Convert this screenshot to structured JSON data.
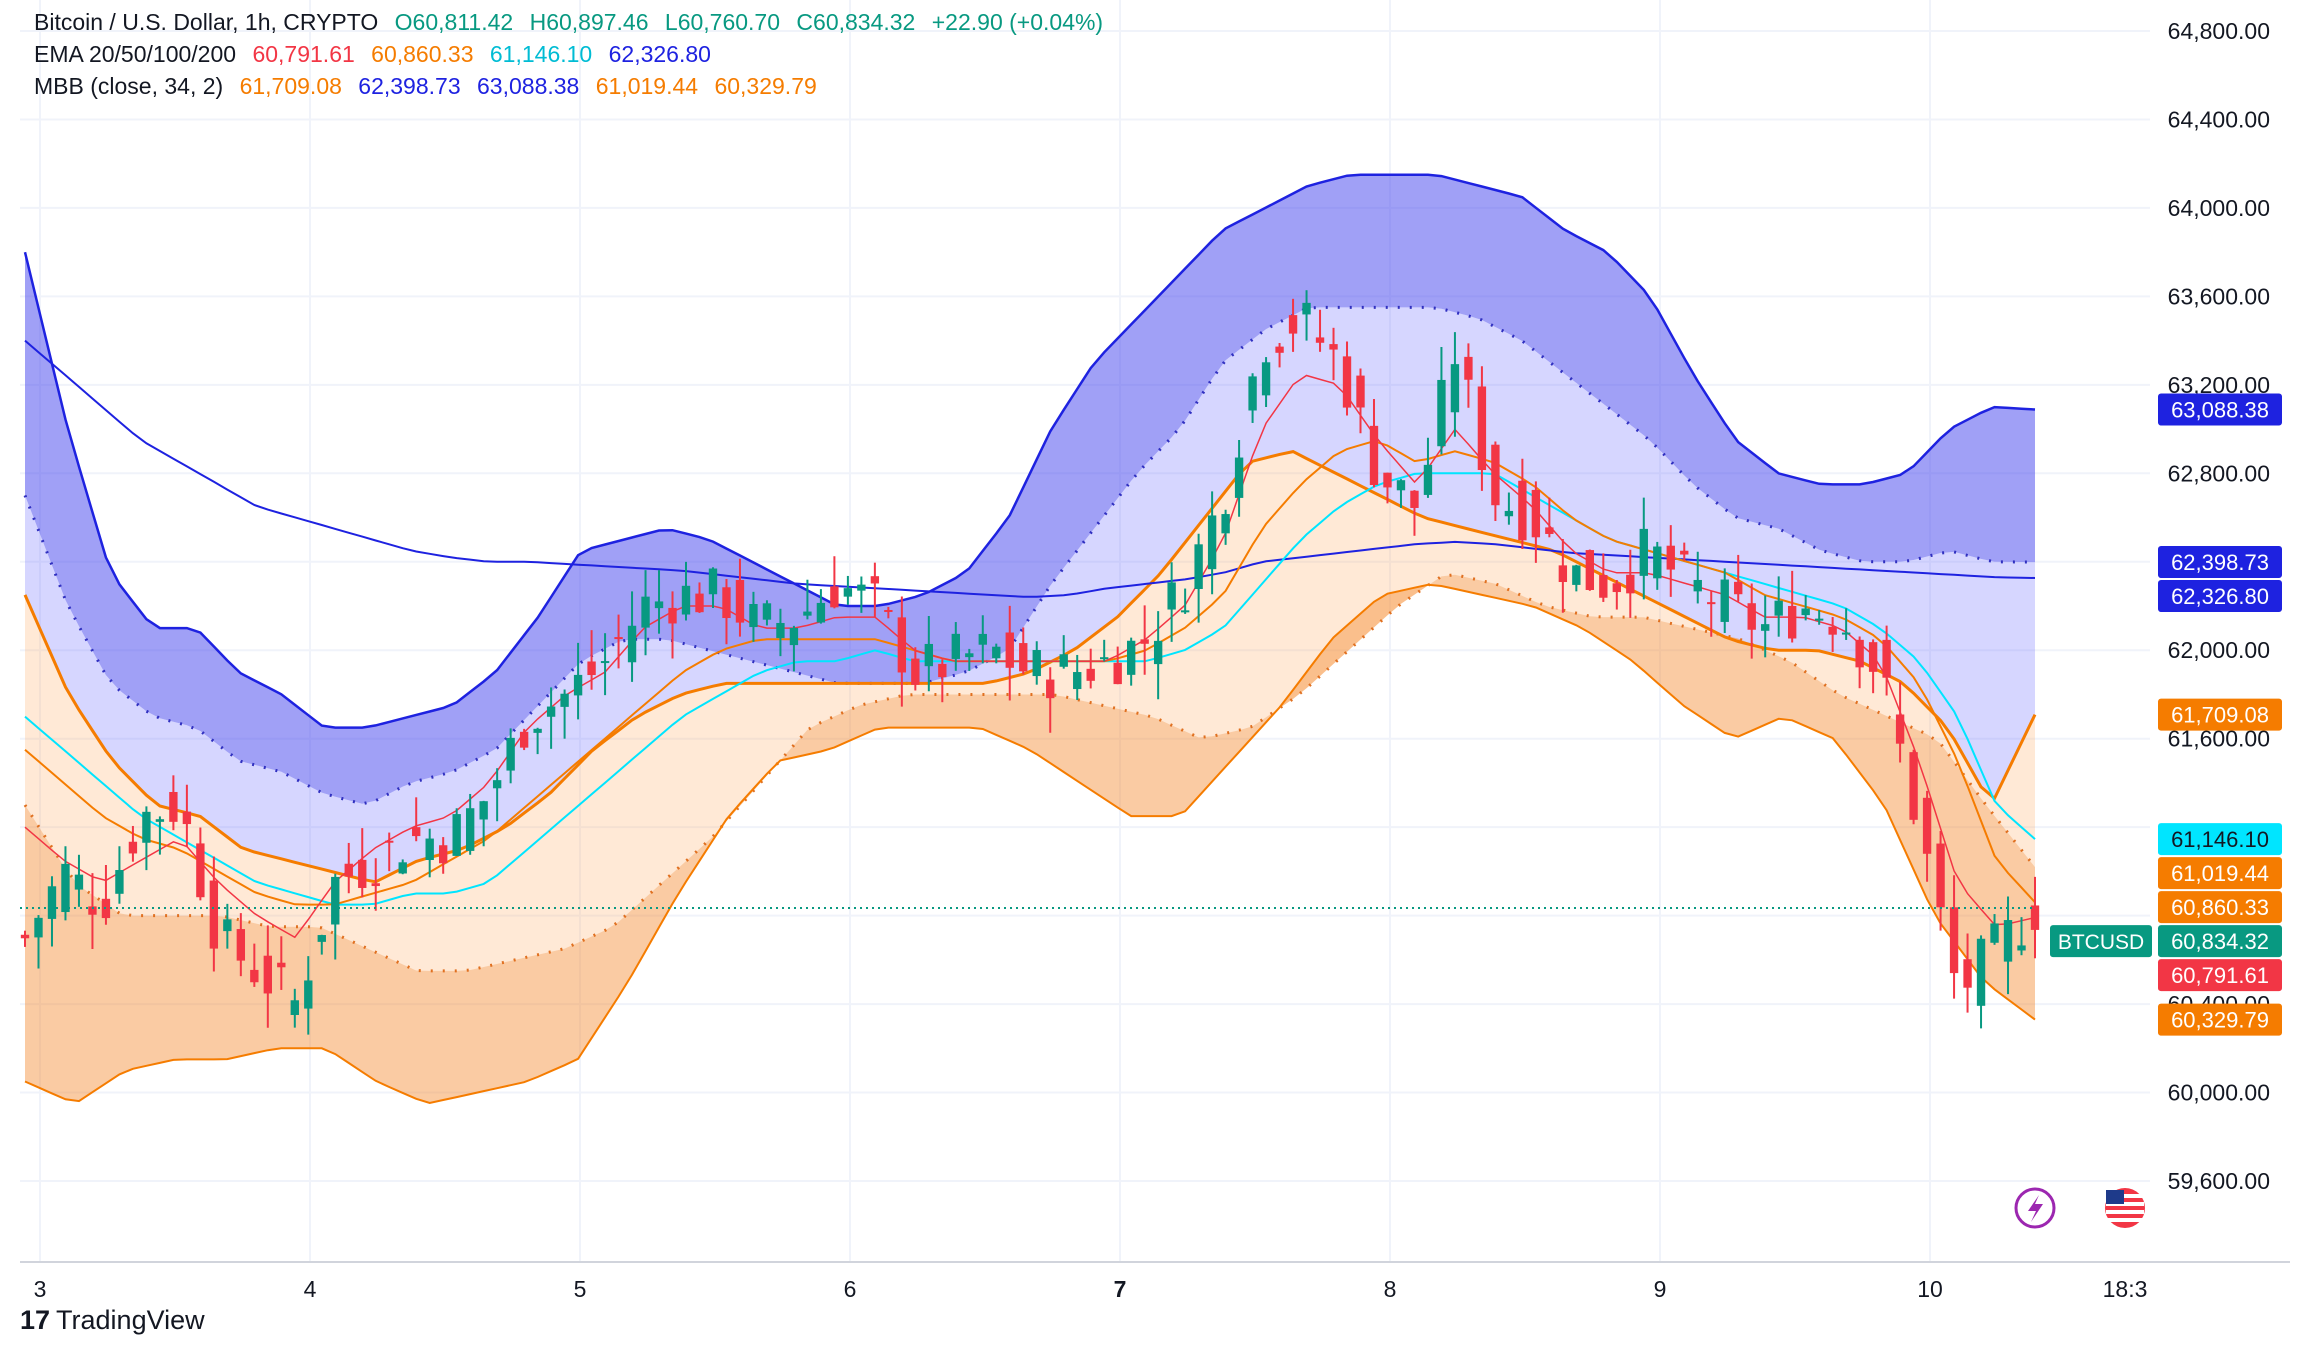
{
  "legend": {
    "symbol_line": {
      "title": "Bitcoin / U.S. Dollar, 1h, CRYPTO",
      "open": "O60,811.42",
      "high": "H60,897.46",
      "low": "L60,760.70",
      "close": "C60,834.32",
      "change": "+22.90 (+0.04%)"
    },
    "ema_line": {
      "label": "EMA 20/50/100/200",
      "v20": "60,791.61",
      "v50": "60,860.33",
      "v100": "61,146.10",
      "v200": "62,326.80"
    },
    "mbb_line": {
      "label": "MBB (close, 34, 2)",
      "v1": "61,709.08",
      "v2": "62,398.73",
      "v3": "63,088.38",
      "v4": "61,019.44",
      "v5": "60,329.79"
    }
  },
  "price_axis": {
    "ticks": [
      "64,800.00",
      "64,400.00",
      "64,000.00",
      "63,600.00",
      "63,200.00",
      "62,800.00",
      "62,400.00",
      "62,000.00",
      "61,600.00",
      "60,400.00",
      "60,000.00",
      "59,600.00"
    ],
    "badges": [
      {
        "text": "63,088.38",
        "value": 63088.38,
        "color": "#1e22e0"
      },
      {
        "text": "62,398.73",
        "value": 62398.73,
        "color": "#1e22e0"
      },
      {
        "text": "62,326.80",
        "value": 62326.8,
        "color": "#1e22e0"
      },
      {
        "text": "61,709.08",
        "value": 61709.08,
        "color": "#f57c00"
      },
      {
        "text": "61,146.10",
        "value": 61146.1,
        "color": "#00e5ff",
        "text_color": "#131722"
      },
      {
        "text": "61,019.44",
        "value": 61019.44,
        "color": "#f57c00"
      },
      {
        "text": "60,860.33",
        "value": 60860.33,
        "color": "#f57c00"
      },
      {
        "text": "60,834.32",
        "value": 60834.32,
        "color": "#089981"
      },
      {
        "text": "60,791.61",
        "value": 60791.61,
        "color": "#f23645"
      },
      {
        "text": "60,329.79",
        "value": 60329.79,
        "color": "#f57c00"
      }
    ],
    "symbol_tag": "BTCUSD"
  },
  "time_axis": {
    "labels": [
      {
        "text": "3",
        "bold": false
      },
      {
        "text": "4",
        "bold": false
      },
      {
        "text": "5",
        "bold": false
      },
      {
        "text": "6",
        "bold": false
      },
      {
        "text": "7",
        "bold": true
      },
      {
        "text": "8",
        "bold": false
      },
      {
        "text": "9",
        "bold": false
      },
      {
        "text": "10",
        "bold": false
      },
      {
        "text": "18:3",
        "bold": false
      }
    ]
  },
  "branding": {
    "name": "TradingView",
    "mark": "17"
  },
  "icons": [
    "lightning-icon",
    "us-flag-icon"
  ],
  "colors": {
    "up": "#089981",
    "down": "#f23645",
    "ema20": "#f23645",
    "ema50": "#f57c00",
    "ema100": "#00e5ff",
    "ema200": "#1e22e0",
    "upper_band": "#1e22e0",
    "lower_band": "#f57c00"
  },
  "chart_data": {
    "type": "candlestick",
    "title": "Bitcoin / U.S. Dollar, 1h, CRYPTO",
    "ylim": [
      59450,
      65000
    ],
    "x_labels": [
      "3",
      "4",
      "5",
      "6",
      "7",
      "8",
      "9",
      "10"
    ],
    "anchors": {
      "close": [
        60700,
        61000,
        60850,
        61250,
        61300,
        60700,
        60550,
        60400,
        60950,
        61050,
        61150,
        61150,
        61350,
        61700,
        61800,
        61950,
        62200,
        62250,
        62250,
        62100,
        62150,
        62300,
        62200,
        61900,
        61950,
        62000,
        61900,
        61900,
        61950,
        62050,
        62300,
        62700,
        63400,
        63500,
        63300,
        62800,
        62650,
        63350,
        62700,
        62600,
        62350,
        62300,
        62450,
        62300,
        62200,
        62100,
        62200,
        62150,
        61900,
        61200,
        60450,
        60650,
        60834.32
      ],
      "ema20": [
        61200,
        61050,
        60950,
        61050,
        61150,
        60950,
        60800,
        60700,
        60950,
        61100,
        61200,
        61250,
        61400,
        61650,
        61800,
        61900,
        62100,
        62200,
        62200,
        62100,
        62100,
        62150,
        62150,
        62000,
        61950,
        61950,
        61950,
        61950,
        61950,
        62050,
        62200,
        62500,
        63000,
        63250,
        63200,
        62950,
        62750,
        63000,
        62800,
        62650,
        62450,
        62350,
        62350,
        62300,
        62250,
        62150,
        62150,
        62100,
        61950,
        61500,
        60950,
        60750,
        60791.61
      ],
      "ema50": [
        61550,
        61400,
        61250,
        61150,
        61100,
        61000,
        60900,
        60850,
        60850,
        60900,
        60950,
        61050,
        61150,
        61300,
        61450,
        61600,
        61750,
        61900,
        62000,
        62050,
        62050,
        62050,
        62050,
        62000,
        61950,
        61950,
        61950,
        61950,
        61950,
        62000,
        62100,
        62250,
        62550,
        62750,
        62900,
        62950,
        62850,
        62900,
        62850,
        62750,
        62600,
        62500,
        62450,
        62400,
        62350,
        62250,
        62200,
        62150,
        62050,
        61850,
        61500,
        61050,
        60860.33
      ],
      "ema100": [
        61700,
        61550,
        61400,
        61250,
        61150,
        61050,
        60950,
        60900,
        60850,
        60850,
        60900,
        60900,
        60950,
        61100,
        61250,
        61400,
        61550,
        61700,
        61800,
        61900,
        61950,
        61950,
        62000,
        61950,
        61950,
        61950,
        61950,
        61950,
        61950,
        61950,
        62000,
        62100,
        62300,
        62500,
        62650,
        62750,
        62800,
        62800,
        62800,
        62700,
        62600,
        62500,
        62450,
        62400,
        62350,
        62300,
        62250,
        62200,
        62100,
        61950,
        61700,
        61300,
        61146.1
      ],
      "ema200": [
        63400,
        63250,
        63100,
        62950,
        62850,
        62750,
        62650,
        62600,
        62550,
        62500,
        62450,
        62420,
        62400,
        62400,
        62390,
        62380,
        62370,
        62360,
        62340,
        62320,
        62300,
        62290,
        62280,
        62270,
        62260,
        62250,
        62240,
        62250,
        62280,
        62300,
        62320,
        62350,
        62400,
        62420,
        62440,
        62460,
        62480,
        62490,
        62480,
        62460,
        62440,
        62430,
        62420,
        62410,
        62400,
        62390,
        62380,
        62370,
        62360,
        62350,
        62340,
        62330,
        62326.8
      ],
      "upper_band": [
        63800,
        63000,
        62350,
        62100,
        62100,
        61900,
        61800,
        61650,
        61650,
        61700,
        61750,
        61900,
        62150,
        62450,
        62500,
        62550,
        62500,
        62400,
        62300,
        62200,
        62200,
        62250,
        62350,
        62600,
        63000,
        63300,
        63500,
        63700,
        63900,
        64000,
        64100,
        64150,
        64150,
        64150,
        64100,
        64050,
        63900,
        63800,
        63600,
        63250,
        62950,
        62800,
        62750,
        62750,
        62800,
        63000,
        63100,
        63088.38
      ],
      "basis": [
        62700,
        62200,
        61850,
        61700,
        61650,
        61500,
        61450,
        61350,
        61300,
        61400,
        61450,
        61550,
        61750,
        61950,
        62050,
        62050,
        62000,
        61950,
        61900,
        61850,
        61850,
        61850,
        61900,
        62000,
        62300,
        62550,
        62800,
        63000,
        63300,
        63450,
        63550,
        63550,
        63550,
        63550,
        63500,
        63400,
        63250,
        63100,
        62950,
        62750,
        62600,
        62550,
        62450,
        62400,
        62400,
        62450,
        62400,
        62398.73
      ],
      "upper_mid": [
        62250,
        61800,
        61500,
        61300,
        61250,
        61100,
        61050,
        61000,
        60950,
        61050,
        61100,
        61200,
        61350,
        61550,
        61700,
        61800,
        61850,
        61850,
        61850,
        61850,
        61850,
        61850,
        61850,
        61900,
        62000,
        62150,
        62350,
        62600,
        62850,
        62900,
        62800,
        62700,
        62600,
        62550,
        62500,
        62450,
        62350,
        62250,
        62150,
        62050,
        62000,
        62000,
        61950,
        61850,
        61650,
        61300,
        61709.08
      ],
      "lower_mid": [
        61300,
        60950,
        60800,
        60800,
        60800,
        60750,
        60750,
        60650,
        60550,
        60550,
        60600,
        60650,
        60750,
        60950,
        61150,
        61400,
        61650,
        61750,
        61800,
        61800,
        61800,
        61800,
        61750,
        61700,
        61600,
        61650,
        61800,
        62000,
        62200,
        62350,
        62300,
        62200,
        62150,
        62150,
        62100,
        62050,
        61950,
        61800,
        61700,
        61600,
        61300,
        61019.44
      ],
      "lower_band": [
        60050,
        59950,
        60100,
        60150,
        60150,
        60200,
        60200,
        60050,
        59950,
        60000,
        60050,
        60150,
        60500,
        60900,
        61250,
        61500,
        61550,
        61650,
        61650,
        61650,
        61550,
        61400,
        61250,
        61250,
        61500,
        61750,
        62050,
        62250,
        62300,
        62250,
        62200,
        62100,
        61950,
        61750,
        61600,
        61700,
        61600,
        61300,
        60800,
        60500,
        60329.79
      ]
    }
  }
}
